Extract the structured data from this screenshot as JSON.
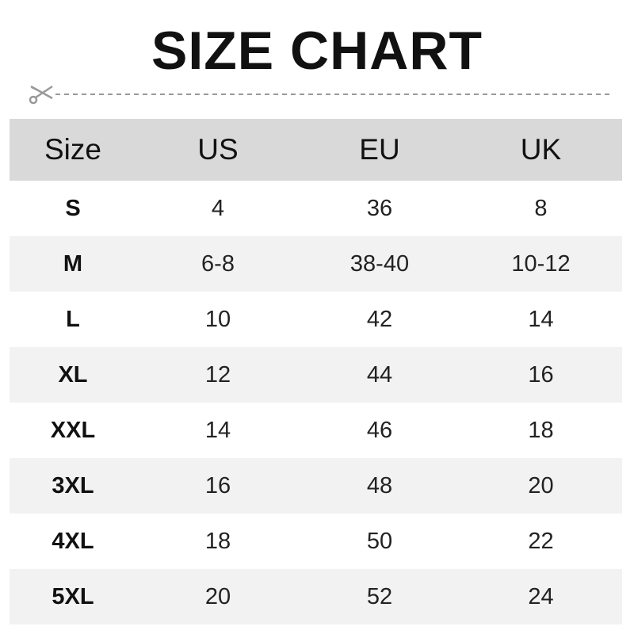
{
  "title": "SIZE CHART",
  "colors": {
    "header_bg": "#d9d9d9",
    "alt_row_bg": "#f2f2f2",
    "cut_line": "#999999"
  },
  "icons": {
    "cut": "scissors-icon"
  },
  "columns": [
    "Size",
    "US",
    "EU",
    "UK"
  ],
  "rows": [
    [
      "S",
      "4",
      "36",
      "8"
    ],
    [
      "M",
      "6-8",
      "38-40",
      "10-12"
    ],
    [
      "L",
      "10",
      "42",
      "14"
    ],
    [
      "XL",
      "12",
      "44",
      "16"
    ],
    [
      "XXL",
      "14",
      "46",
      "18"
    ],
    [
      "3XL",
      "16",
      "48",
      "20"
    ],
    [
      "4XL",
      "18",
      "50",
      "22"
    ],
    [
      "5XL",
      "20",
      "52",
      "24"
    ]
  ]
}
